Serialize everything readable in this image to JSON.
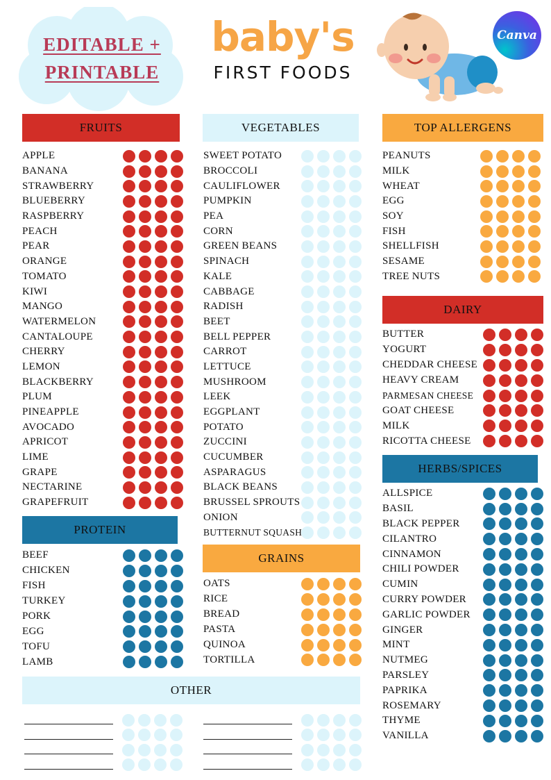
{
  "header": {
    "badge_line1": "EDITABLE +",
    "badge_line2": "PRINTABLE",
    "title": "baby's",
    "subtitle": "FIRST FOODS",
    "canva_label": "Canva"
  },
  "colors": {
    "red": "#d22e27",
    "light": "#dcf4fb",
    "orange": "#f9a940",
    "blue": "#1c76a3",
    "badge": "#b83b57"
  },
  "sections": {
    "fruits": {
      "title": "FRUITS",
      "items": [
        "APPLE",
        "BANANA",
        "STRAWBERRY",
        "BLUEBERRY",
        "RASPBERRY",
        "PEACH",
        "PEAR",
        "ORANGE",
        "TOMATO",
        "KIWI",
        "MANGO",
        "WATERMELON",
        "CANTALOUPE",
        "CHERRY",
        "LEMON",
        "BLACKBERRY",
        "PLUM",
        "PINEAPPLE",
        "AVOCADO",
        "APRICOT",
        "LIME",
        "GRAPE",
        "NECTARINE",
        "GRAPEFRUIT"
      ]
    },
    "protein": {
      "title": "PROTEIN",
      "items": [
        "BEEF",
        "CHICKEN",
        "FISH",
        "TURKEY",
        "PORK",
        "EGG",
        "TOFU",
        "LAMB"
      ]
    },
    "vegetables": {
      "title": "VEGETABLES",
      "items": [
        "SWEET POTATO",
        "BROCCOLI",
        "CAULIFLOWER",
        "PUMPKIN",
        "PEA",
        "CORN",
        "GREEN BEANS",
        "SPINACH",
        "KALE",
        "CABBAGE",
        "RADISH",
        "BEET",
        "BELL PEPPER",
        "CARROT",
        "LETTUCE",
        "MUSHROOM",
        "LEEK",
        "EGGPLANT",
        "POTATO",
        "ZUCCINI",
        "CUCUMBER",
        "ASPARAGUS",
        "BLACK BEANS",
        "BRUSSEL SPROUTS",
        "ONION",
        "BUTTERNUT SQUASH"
      ]
    },
    "grains": {
      "title": "GRAINS",
      "items": [
        "OATS",
        "RICE",
        "BREAD",
        "PASTA",
        "QUINOA",
        "TORTILLA"
      ]
    },
    "allergens": {
      "title": "TOP ALLERGENS",
      "items": [
        "PEANUTS",
        "MILK",
        "WHEAT",
        "EGG",
        "SOY",
        "FISH",
        "SHELLFISH",
        "SESAME",
        "TREE NUTS"
      ]
    },
    "dairy": {
      "title": "DAIRY",
      "items": [
        "BUTTER",
        "YOGURT",
        "CHEDDAR CHEESE",
        "HEAVY CREAM",
        "PARMESAN CHEESE",
        "GOAT CHEESE",
        "MILK",
        "RICOTTA CHEESE"
      ]
    },
    "herbs": {
      "title": "HERBS/SPICES",
      "items": [
        "ALLSPICE",
        "BASIL",
        "BLACK PEPPER",
        "CILANTRO",
        "CINNAMON",
        "CHILI POWDER",
        "CUMIN",
        "CURRY POWDER",
        "GARLIC POWDER",
        "GINGER",
        "MINT",
        "NUTMEG",
        "PARSLEY",
        "PAPRIKA",
        "ROSEMARY",
        "THYME",
        "VANILLA"
      ]
    },
    "other": {
      "title": "OTHER"
    }
  }
}
